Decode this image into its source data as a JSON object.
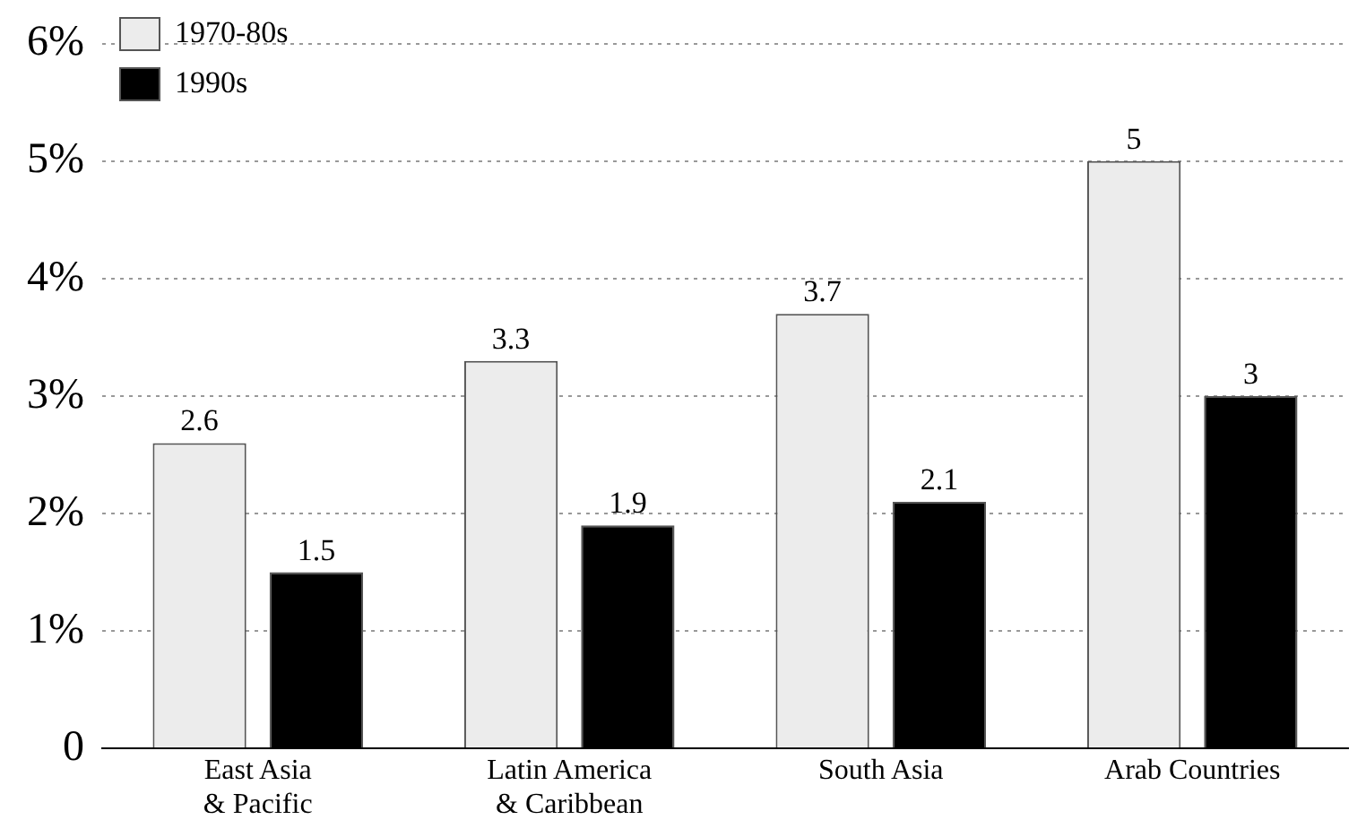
{
  "chart_data": {
    "type": "bar",
    "categories": [
      "East Asia & Pacific",
      "Latin America & Caribbean",
      "South Asia",
      "Arab Countries"
    ],
    "series": [
      {
        "name": "1970-80s",
        "color": "#ececec",
        "values": [
          2.6,
          3.3,
          3.7,
          5
        ]
      },
      {
        "name": "1990s",
        "color": "#000000",
        "values": [
          1.5,
          1.9,
          2.1,
          3
        ]
      }
    ],
    "ylim": [
      0,
      6
    ],
    "yticks": [
      {
        "value": 0,
        "label": "0"
      },
      {
        "value": 1,
        "label": "1%"
      },
      {
        "value": 2,
        "label": "2%"
      },
      {
        "value": 3,
        "label": "3%"
      },
      {
        "value": 4,
        "label": "4%"
      },
      {
        "value": 5,
        "label": "5%"
      },
      {
        "value": 6,
        "label": "6%"
      }
    ],
    "grid": "y",
    "legend": "top left",
    "data_labels": true
  }
}
